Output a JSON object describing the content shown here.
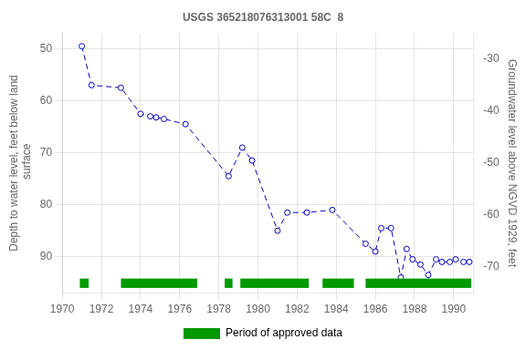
{
  "chart_data": {
    "type": "line",
    "title": "USGS 365218076313001 58C  8",
    "ylabel": "Depth to water level, feet below land\n surface",
    "y2label": "Groundwater level above NGVD 1929, feet",
    "x": [
      1971.0,
      1971.5,
      1973.0,
      1974.0,
      1974.5,
      1974.8,
      1975.2,
      1976.3,
      1978.5,
      1979.2,
      1979.7,
      1981.0,
      1981.5,
      1982.5,
      1983.8,
      1985.5,
      1986.0,
      1986.3,
      1986.8,
      1987.3,
      1987.6,
      1987.9,
      1988.3,
      1988.7,
      1989.1,
      1989.4,
      1989.8,
      1990.1,
      1990.5,
      1990.8
    ],
    "values": [
      49.5,
      57.0,
      57.5,
      62.5,
      63.0,
      63.2,
      63.5,
      64.5,
      74.5,
      69.0,
      71.5,
      85.0,
      81.5,
      81.5,
      81.0,
      87.5,
      89.0,
      84.5,
      84.5,
      94.0,
      88.5,
      90.5,
      91.5,
      93.5,
      90.5,
      91.0,
      91.0,
      90.5,
      91.0,
      91.0
    ],
    "color": "#0000bb",
    "line_style": "dashed",
    "marker": "circle",
    "xlim": [
      1970,
      1991
    ],
    "xticks": [
      1970,
      1972,
      1974,
      1976,
      1978,
      1980,
      1982,
      1984,
      1986,
      1988,
      1990
    ],
    "ylim": [
      97,
      47
    ],
    "yticks": [
      50,
      60,
      70,
      80,
      90
    ],
    "y2lim": [
      -75,
      -25
    ],
    "y2ticks": [
      -30,
      -40,
      -50,
      -60,
      -70
    ],
    "grid": true,
    "legend": "bottom",
    "approved_periods": {
      "name": "Period of approved data",
      "color": "#009900",
      "ranges": [
        [
          1970.9,
          1971.35
        ],
        [
          1973.0,
          1976.9
        ],
        [
          1978.3,
          1978.7
        ],
        [
          1979.1,
          1982.6
        ],
        [
          1983.3,
          1984.9
        ],
        [
          1985.5,
          1990.9
        ]
      ]
    }
  }
}
